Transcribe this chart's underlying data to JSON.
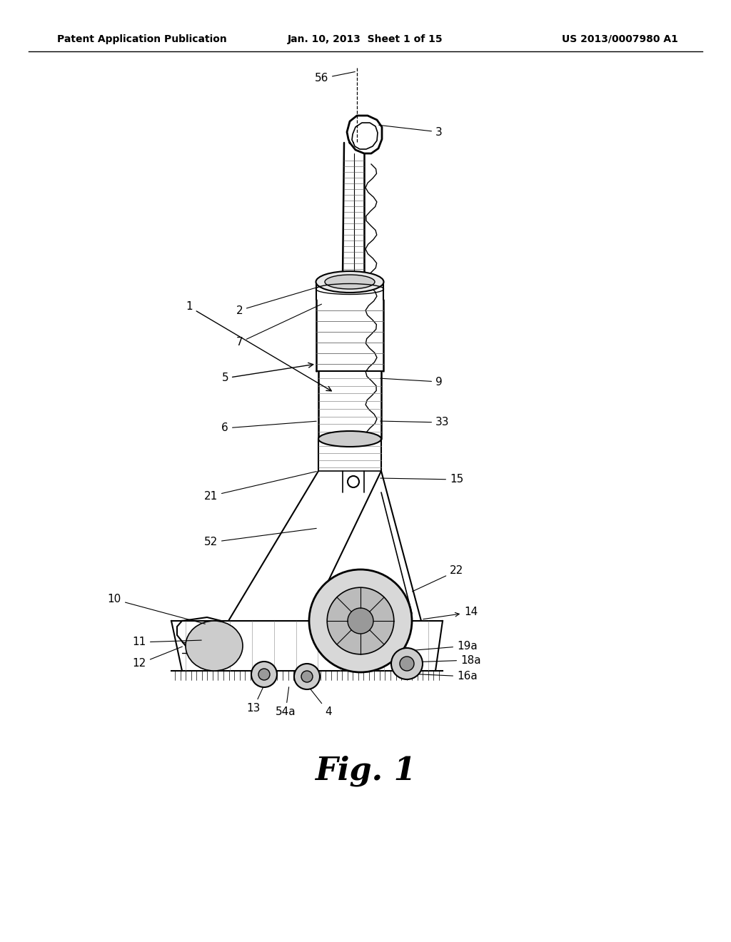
{
  "bg_color": "#ffffff",
  "header_left": "Patent Application Publication",
  "header_mid": "Jan. 10, 2013  Sheet 1 of 15",
  "header_right": "US 2013/0007980 A1",
  "fig_label": "Fig. 1",
  "header_fontsize": 10,
  "fig_label_fontsize": 32,
  "label_fontsize": 11
}
